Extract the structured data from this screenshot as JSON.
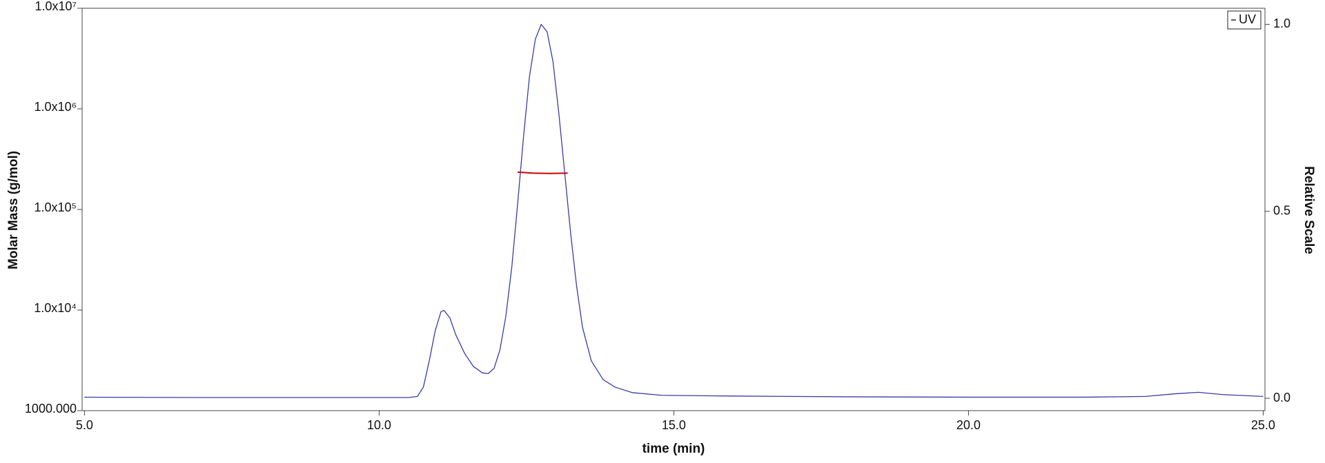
{
  "chart_data": {
    "type": "line",
    "xlabel": "time (min)",
    "ylabel": "Molar Mass (g/mol)",
    "y2label": "Relative Scale",
    "xlim": [
      4.96,
      25.03
    ],
    "xticks": [
      {
        "value": 5,
        "label": "5.0"
      },
      {
        "value": 10,
        "label": "10.0"
      },
      {
        "value": 15,
        "label": "15.0"
      },
      {
        "value": 20,
        "label": "20.0"
      },
      {
        "value": 25,
        "label": "25.0"
      }
    ],
    "ylim": [
      1000,
      10000000
    ],
    "ylog": true,
    "yticks": [
      {
        "value": 1000,
        "label": "1000.000"
      },
      {
        "value": 10000,
        "label": "1.0x10⁴"
      },
      {
        "value": 100000,
        "label": "1.0x10⁵"
      },
      {
        "value": 1000000,
        "label": "1.0x10⁶"
      },
      {
        "value": 10000000,
        "label": "1.0x10⁷"
      }
    ],
    "y2lim": [
      -0.033,
      1.043
    ],
    "y2ticks": [
      {
        "value": 0,
        "label": "0.0"
      },
      {
        "value": 0.5,
        "label": "0.5"
      },
      {
        "value": 1,
        "label": "1.0"
      }
    ],
    "grid": false,
    "legend": "upper right",
    "series": [
      {
        "name": "UV",
        "color": "#3a3aa8",
        "axis": "y2",
        "x": [
          5.0,
          7.0,
          9.0,
          10.5,
          10.65,
          10.75,
          10.85,
          10.95,
          11.05,
          11.1,
          11.2,
          11.3,
          11.45,
          11.6,
          11.75,
          11.85,
          11.95,
          12.05,
          12.15,
          12.25,
          12.35,
          12.45,
          12.55,
          12.65,
          12.75,
          12.85,
          12.95,
          13.05,
          13.15,
          13.25,
          13.35,
          13.45,
          13.6,
          13.8,
          14.0,
          14.3,
          14.8,
          16.0,
          18.0,
          20.0,
          22.0,
          23.0,
          23.5,
          23.9,
          24.3,
          25.0
        ],
        "values": [
          0.003,
          0.002,
          0.002,
          0.002,
          0.005,
          0.03,
          0.1,
          0.18,
          0.232,
          0.235,
          0.215,
          0.17,
          0.12,
          0.085,
          0.068,
          0.066,
          0.08,
          0.13,
          0.22,
          0.35,
          0.52,
          0.7,
          0.86,
          0.96,
          1.0,
          0.98,
          0.9,
          0.76,
          0.6,
          0.44,
          0.3,
          0.19,
          0.1,
          0.05,
          0.03,
          0.015,
          0.008,
          0.006,
          0.004,
          0.003,
          0.003,
          0.005,
          0.012,
          0.016,
          0.01,
          0.005
        ]
      },
      {
        "color": "#cc0000",
        "axis": "y",
        "x": [
          12.35,
          12.6,
          12.9,
          13.2
        ],
        "values": [
          235000,
          230000,
          228000,
          230000
        ]
      }
    ]
  }
}
